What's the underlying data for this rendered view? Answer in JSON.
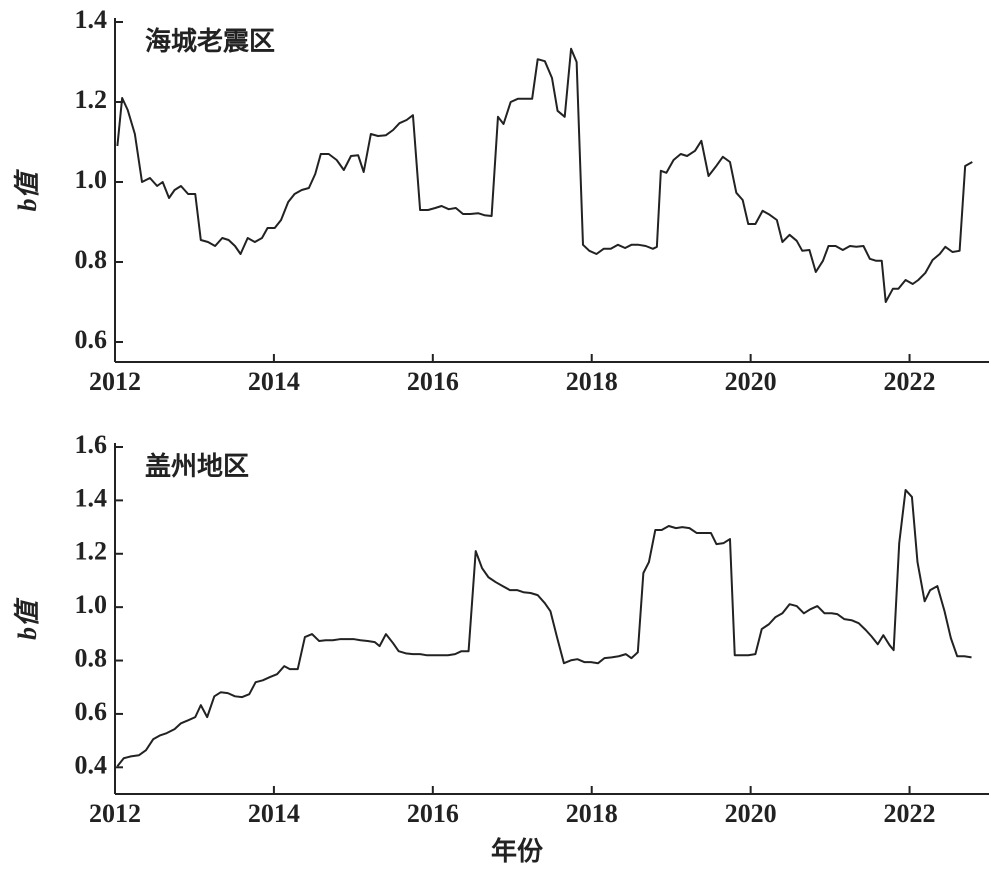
{
  "chart_data": [
    {
      "type": "line",
      "title": "海城老震区",
      "y_label": "b值",
      "xlim": [
        2012,
        2023
      ],
      "xticks": [
        2012,
        2014,
        2016,
        2018,
        2020,
        2022
      ],
      "ylim": [
        0.55,
        1.4
      ],
      "yticks": [
        {
          "value": 0.6,
          "label": "0.6"
        },
        {
          "value": 0.8,
          "label": "0.8"
        },
        {
          "value": 1.0,
          "label": "1.0"
        },
        {
          "value": 1.2,
          "label": "1.2"
        },
        {
          "value": 1.4,
          "label": "1.4"
        }
      ],
      "color": "#222222",
      "x": [
        2012.03,
        2012.09,
        2012.16,
        2012.25,
        2012.34,
        2012.44,
        2012.53,
        2012.6,
        2012.68,
        2012.75,
        2012.83,
        2012.92,
        2013.01,
        2013.08,
        2013.17,
        2013.26,
        2013.35,
        2013.43,
        2013.51,
        2013.58,
        2013.67,
        2013.76,
        2013.85,
        2013.92,
        2014.01,
        2014.09,
        2014.18,
        2014.26,
        2014.35,
        2014.44,
        2014.52,
        2014.59,
        2014.69,
        2014.79,
        2014.88,
        2014.97,
        2015.06,
        2015.13,
        2015.22,
        2015.31,
        2015.41,
        2015.5,
        2015.58,
        2015.67,
        2015.75,
        2015.84,
        2015.94,
        2016.03,
        2016.11,
        2016.2,
        2016.29,
        2016.38,
        2016.47,
        2016.57,
        2016.65,
        2016.74,
        2016.82,
        2016.89,
        2016.98,
        2017.07,
        2017.17,
        2017.25,
        2017.32,
        2017.41,
        2017.5,
        2017.57,
        2017.66,
        2017.74,
        2017.81,
        2017.89,
        2017.97,
        2018.06,
        2018.15,
        2018.24,
        2018.33,
        2018.42,
        2018.5,
        2018.59,
        2018.68,
        2018.77,
        2018.82,
        2018.87,
        2018.94,
        2019.03,
        2019.12,
        2019.2,
        2019.3,
        2019.38,
        2019.47,
        2019.56,
        2019.65,
        2019.74,
        2019.82,
        2019.9,
        2019.97,
        2020.06,
        2020.15,
        2020.24,
        2020.33,
        2020.4,
        2020.49,
        2020.58,
        2020.65,
        2020.74,
        2020.82,
        2020.91,
        2020.98,
        2021.07,
        2021.16,
        2021.25,
        2021.33,
        2021.42,
        2021.5,
        2021.58,
        2021.65,
        2021.7,
        2021.79,
        2021.86,
        2021.95,
        2022.04,
        2022.11,
        2022.2,
        2022.29,
        2022.38,
        2022.45,
        2022.54,
        2022.63,
        2022.7,
        2022.79
      ],
      "values": [
        1.09,
        1.21,
        1.18,
        1.12,
        1.0,
        1.01,
        0.99,
        1.0,
        0.96,
        0.98,
        0.99,
        0.97,
        0.97,
        0.855,
        0.85,
        0.84,
        0.86,
        0.855,
        0.84,
        0.82,
        0.86,
        0.85,
        0.86,
        0.885,
        0.885,
        0.905,
        0.95,
        0.97,
        0.98,
        0.985,
        1.02,
        1.07,
        1.07,
        1.055,
        1.03,
        1.065,
        1.067,
        1.025,
        1.12,
        1.115,
        1.117,
        1.13,
        1.147,
        1.155,
        1.167,
        0.93,
        0.93,
        0.935,
        0.94,
        0.932,
        0.935,
        0.92,
        0.92,
        0.922,
        0.917,
        0.915,
        1.163,
        1.145,
        1.2,
        1.208,
        1.208,
        1.208,
        1.307,
        1.302,
        1.26,
        1.178,
        1.163,
        1.333,
        1.3,
        0.843,
        0.828,
        0.82,
        0.833,
        0.833,
        0.843,
        0.835,
        0.843,
        0.843,
        0.84,
        0.833,
        0.838,
        1.028,
        1.023,
        1.055,
        1.07,
        1.065,
        1.078,
        1.103,
        1.015,
        1.038,
        1.063,
        1.05,
        0.973,
        0.955,
        0.895,
        0.895,
        0.928,
        0.918,
        0.905,
        0.85,
        0.868,
        0.853,
        0.828,
        0.83,
        0.775,
        0.803,
        0.84,
        0.84,
        0.83,
        0.84,
        0.838,
        0.84,
        0.808,
        0.803,
        0.803,
        0.7,
        0.733,
        0.733,
        0.755,
        0.745,
        0.755,
        0.773,
        0.805,
        0.82,
        0.838,
        0.825,
        0.828,
        1.04,
        1.05
      ]
    },
    {
      "type": "line",
      "title": "盖州地区",
      "y_label": "b值",
      "x_label": "年份",
      "xlim": [
        2012,
        2023
      ],
      "xticks": [
        2012,
        2014,
        2016,
        2018,
        2020,
        2022
      ],
      "ylim": [
        0.3,
        1.6
      ],
      "yticks": [
        0.4,
        0.6,
        0.8,
        {
          "value": 1.0,
          "label": "1.0"
        },
        1.2,
        1.4,
        1.6
      ],
      "color": "#222222",
      "x": [
        2012.03,
        2012.11,
        2012.2,
        2012.3,
        2012.39,
        2012.48,
        2012.57,
        2012.65,
        2012.75,
        2012.83,
        2012.92,
        2013.01,
        2013.08,
        2013.16,
        2013.25,
        2013.33,
        2013.42,
        2013.51,
        2013.6,
        2013.69,
        2013.77,
        2013.86,
        2013.95,
        2014.04,
        2014.13,
        2014.2,
        2014.3,
        2014.39,
        2014.48,
        2014.57,
        2014.65,
        2014.74,
        2014.83,
        2014.92,
        2015.01,
        2015.09,
        2015.18,
        2015.27,
        2015.33,
        2015.41,
        2015.5,
        2015.57,
        2015.66,
        2015.75,
        2015.84,
        2015.92,
        2016.01,
        2016.1,
        2016.19,
        2016.28,
        2016.36,
        2016.45,
        2016.54,
        2016.62,
        2016.7,
        2016.79,
        2016.88,
        2016.97,
        2017.06,
        2017.14,
        2017.23,
        2017.32,
        2017.41,
        2017.48,
        2017.56,
        2017.65,
        2017.74,
        2017.82,
        2017.91,
        2017.99,
        2018.08,
        2018.16,
        2018.25,
        2018.34,
        2018.43,
        2018.5,
        2018.58,
        2018.65,
        2018.72,
        2018.8,
        2018.88,
        2018.97,
        2019.06,
        2019.14,
        2019.23,
        2019.32,
        2019.41,
        2019.5,
        2019.57,
        2019.66,
        2019.74,
        2019.8,
        2019.89,
        2019.97,
        2020.06,
        2020.14,
        2020.23,
        2020.31,
        2020.4,
        2020.49,
        2020.58,
        2020.67,
        2020.75,
        2020.84,
        2020.93,
        2021.02,
        2021.09,
        2021.18,
        2021.27,
        2021.36,
        2021.45,
        2021.52,
        2021.6,
        2021.67,
        2021.75,
        2021.8,
        2021.87,
        2021.95,
        2022.03,
        2022.1,
        2022.19,
        2022.26,
        2022.35,
        2022.44,
        2022.52,
        2022.6,
        2022.69,
        2022.78
      ],
      "values": [
        0.404,
        0.434,
        0.441,
        0.445,
        0.464,
        0.505,
        0.52,
        0.528,
        0.543,
        0.565,
        0.576,
        0.588,
        0.633,
        0.588,
        0.666,
        0.681,
        0.678,
        0.666,
        0.663,
        0.674,
        0.719,
        0.726,
        0.738,
        0.749,
        0.779,
        0.768,
        0.768,
        0.888,
        0.899,
        0.873,
        0.876,
        0.876,
        0.88,
        0.88,
        0.88,
        0.876,
        0.873,
        0.869,
        0.854,
        0.899,
        0.865,
        0.835,
        0.827,
        0.824,
        0.824,
        0.82,
        0.82,
        0.82,
        0.82,
        0.824,
        0.835,
        0.835,
        1.21,
        1.146,
        1.112,
        1.094,
        1.079,
        1.064,
        1.064,
        1.056,
        1.053,
        1.045,
        1.015,
        0.985,
        0.891,
        0.79,
        0.801,
        0.805,
        0.794,
        0.794,
        0.79,
        0.809,
        0.812,
        0.816,
        0.824,
        0.809,
        0.831,
        1.128,
        1.169,
        1.289,
        1.289,
        1.304,
        1.296,
        1.3,
        1.296,
        1.278,
        1.278,
        1.278,
        1.236,
        1.24,
        1.255,
        0.82,
        0.82,
        0.82,
        0.824,
        0.918,
        0.936,
        0.962,
        0.977,
        1.011,
        1.004,
        0.977,
        0.992,
        1.004,
        0.977,
        0.977,
        0.974,
        0.955,
        0.951,
        0.94,
        0.914,
        0.891,
        0.861,
        0.895,
        0.857,
        0.839,
        1.24,
        1.439,
        1.413,
        1.169,
        1.022,
        1.064,
        1.079,
        0.985,
        0.884,
        0.816,
        0.816,
        0.812
      ]
    }
  ]
}
